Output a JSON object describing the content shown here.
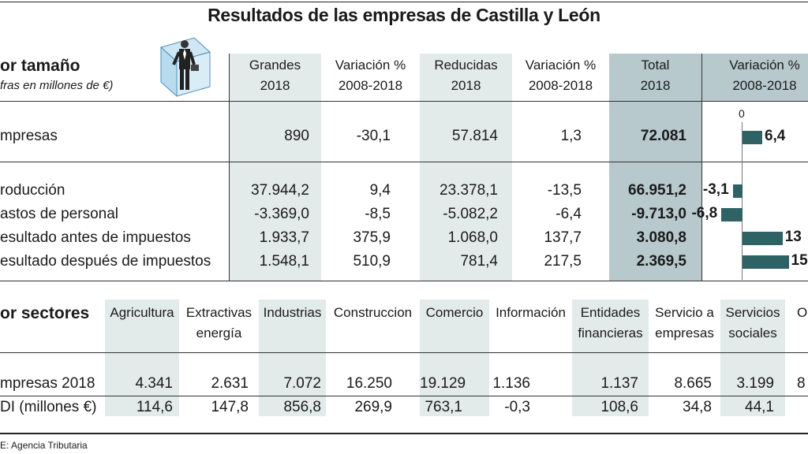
{
  "title": "Resultados de las empresas de Castilla y León",
  "size_section": {
    "heading": "or tamaño",
    "subheading": "fras en millones de €)",
    "columns": [
      {
        "line1": "Grandes",
        "line2": "2018"
      },
      {
        "line1": "Variación %",
        "line2": "2008-2018"
      },
      {
        "line1": "Reducidas",
        "line2": "2018"
      },
      {
        "line1": "Variación %",
        "line2": "2008-2018"
      },
      {
        "line1": "Total",
        "line2": "2018"
      },
      {
        "line1": "Variación %",
        "line2": "2008-2018"
      }
    ],
    "zero_label": "0",
    "rows": [
      {
        "label": "mpresas",
        "grandes": "890",
        "var_grandes": "-30,1",
        "reducidas": "57.814",
        "var_reducidas": "1,3",
        "total": "72.081",
        "var_total": "6,4"
      },
      {
        "label": "roducción",
        "grandes": "37.944,2",
        "var_grandes": "9,4",
        "reducidas": "23.378,1",
        "var_reducidas": "-13,5",
        "total": "66.951,2",
        "var_total": "-3,1"
      },
      {
        "label": "astos de personal",
        "grandes": "-3.369,0",
        "var_grandes": "-8,5",
        "reducidas": "-5.082,2",
        "var_reducidas": "-6,4",
        "total": "-9.713,0",
        "var_total": "-6,8"
      },
      {
        "label": "esultado antes de impuestos",
        "grandes": "1.933,7",
        "var_grandes": "375,9",
        "reducidas": "1.068,0",
        "var_reducidas": "137,7",
        "total": "3.080,8",
        "var_total": "13"
      },
      {
        "label": "esultado después de impuestos",
        "grandes": "1.548,1",
        "var_grandes": "510,9",
        "reducidas": "781,4",
        "var_reducidas": "217,5",
        "total": "2.369,5",
        "var_total": "15"
      }
    ]
  },
  "sector_section": {
    "heading": "or sectores",
    "columns": [
      {
        "line1": "Agricultura",
        "line2": ""
      },
      {
        "line1": "Extractivas",
        "line2": "energía"
      },
      {
        "line1": "Industrias",
        "line2": ""
      },
      {
        "line1": "Construccion",
        "line2": ""
      },
      {
        "line1": "Comercio",
        "line2": ""
      },
      {
        "line1": "Información",
        "line2": ""
      },
      {
        "line1": "Entidades",
        "line2": "financieras"
      },
      {
        "line1": "Servicio a",
        "line2": "empresas"
      },
      {
        "line1": "Servicios",
        "line2": "sociales"
      },
      {
        "line1": "O",
        "line2": ""
      }
    ],
    "rows": [
      {
        "label": "mpresas 2018",
        "values": [
          "4.341",
          "2.631",
          "7.072",
          "16.250",
          "19.129",
          "1.136",
          "1.137",
          "8.665",
          "3.199",
          "8"
        ]
      },
      {
        "label": "DI (millones €)",
        "values": [
          "114,6",
          "147,8",
          "856,8",
          "269,9",
          "763,1",
          "-0,3",
          "108,6",
          "34,8",
          "44,1",
          ""
        ]
      }
    ]
  },
  "source": "E: Agencia Tributaria",
  "colors": {
    "bar": "#2e6264",
    "shade_light": "#e3ebea",
    "shade_dark": "#b7c9cd"
  },
  "icon": "businessman-in-box-icon",
  "chart_data": {
    "type": "bar",
    "categories": [
      "mpresas",
      "roducción",
      "astos de personal",
      "esultado antes de impuestos",
      "esultado después de impuestos"
    ],
    "values": [
      6.4,
      -3.1,
      -6.8,
      13,
      15
    ]
  }
}
